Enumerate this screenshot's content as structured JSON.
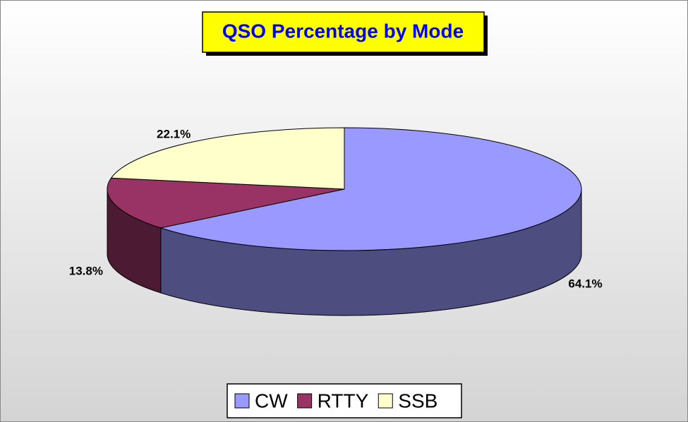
{
  "chart_data": {
    "type": "pie3d",
    "title": "QSO Percentage by Mode",
    "categories": [
      "CW",
      "RTTY",
      "SSB"
    ],
    "values": [
      64.1,
      13.8,
      22.1
    ],
    "value_labels": [
      "64.1%",
      "13.8%",
      "22.1%"
    ],
    "colors": [
      "#9999ff",
      "#993366",
      "#ffffcc"
    ],
    "legend": "bottom"
  }
}
